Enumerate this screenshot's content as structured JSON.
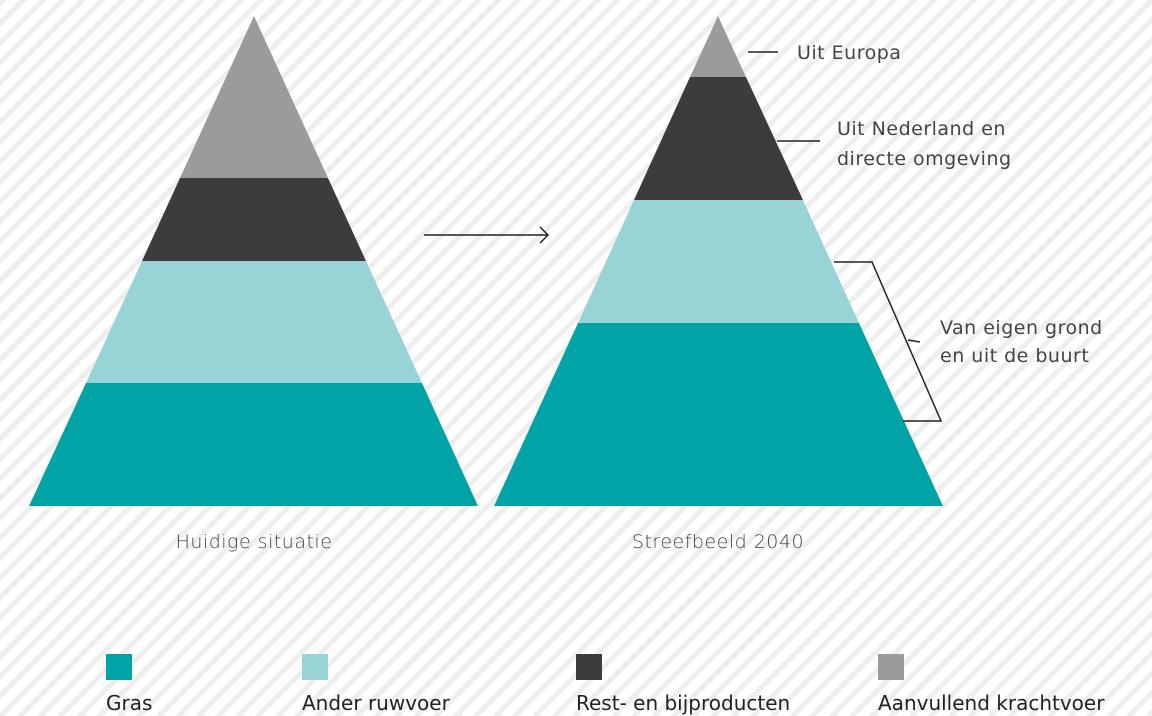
{
  "captions": [
    "Huidige situatie",
    "Streefbeeld 2040"
  ],
  "annotations": [
    {
      "lines": [
        "Uit Europa"
      ]
    },
    {
      "lines": [
        "Uit Nederland en",
        "directe omgeving"
      ]
    },
    {
      "lines": [
        "Van eigen grond",
        "en uit de buurt"
      ]
    }
  ],
  "legend": [
    {
      "label": "Gras",
      "color": "#00a3a6"
    },
    {
      "label": "Ander ruwvoer",
      "color": "#98d4d6"
    },
    {
      "label": "Rest- en bijproducten",
      "color": "#3c3c3c"
    },
    {
      "label": "Aanvullend krachtvoer",
      "color": "#9b9b9b"
    }
  ]
}
